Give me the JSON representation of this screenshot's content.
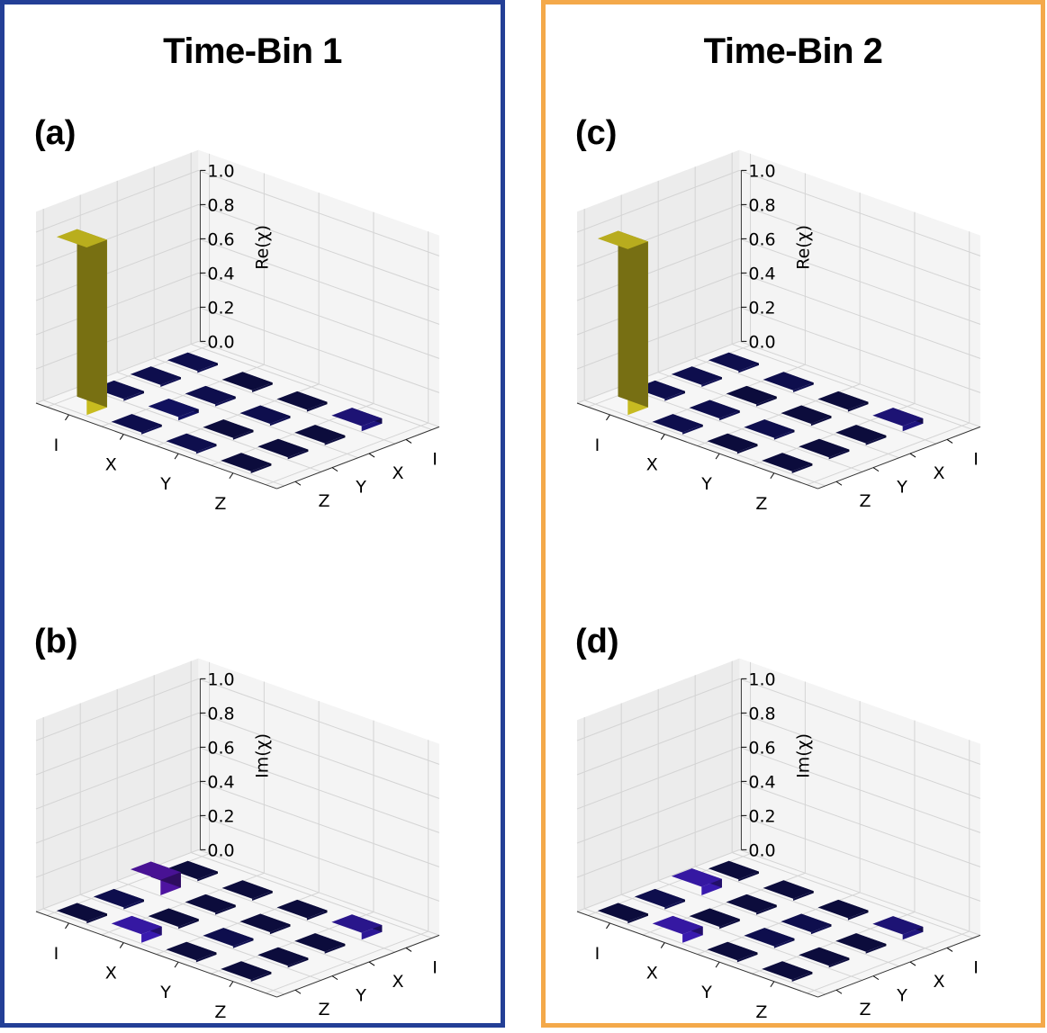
{
  "groups": [
    {
      "title": "Time-Bin 1",
      "color": "#233f96"
    },
    {
      "title": "Time-Bin 2",
      "color": "#f4a94a"
    }
  ],
  "chart_data": [
    {
      "type": "bar3d",
      "panel": "(a)",
      "group": "Time-Bin 1",
      "zlabel": "Re(χ)",
      "zlim": [
        0,
        1.0
      ],
      "zticks": [
        "0.0",
        "0.2",
        "0.4",
        "0.6",
        "0.8",
        "1.0"
      ],
      "rows": [
        "I",
        "X",
        "Y",
        "Z"
      ],
      "cols": [
        "I",
        "X",
        "Y",
        "Z"
      ],
      "values": [
        [
          0.98,
          0.01,
          0.01,
          0.01
        ],
        [
          0.01,
          0.02,
          0.01,
          0.0
        ],
        [
          0.01,
          0.0,
          0.01,
          0.0
        ],
        [
          0.0,
          0.0,
          0.0,
          0.03
        ]
      ]
    },
    {
      "type": "bar3d",
      "panel": "(b)",
      "group": "Time-Bin 1",
      "zlabel": "Im(χ)",
      "zlim": [
        0,
        1.0
      ],
      "zticks": [
        "0.0",
        "0.2",
        "0.4",
        "0.6",
        "0.8",
        "1.0"
      ],
      "rows": [
        "I",
        "X",
        "Y",
        "Z"
      ],
      "cols": [
        "I",
        "X",
        "Y",
        "Z"
      ],
      "values": [
        [
          0.0,
          0.01,
          0.09,
          0.0
        ],
        [
          0.05,
          0.0,
          0.0,
          0.0
        ],
        [
          0.0,
          0.01,
          0.0,
          0.0
        ],
        [
          0.0,
          0.0,
          0.0,
          0.04
        ]
      ]
    },
    {
      "type": "bar3d",
      "panel": "(c)",
      "group": "Time-Bin 2",
      "zlabel": "Re(χ)",
      "zlim": [
        0,
        1.0
      ],
      "zticks": [
        "0.0",
        "0.2",
        "0.4",
        "0.6",
        "0.8",
        "1.0"
      ],
      "rows": [
        "I",
        "X",
        "Y",
        "Z"
      ],
      "cols": [
        "I",
        "X",
        "Y",
        "Z"
      ],
      "values": [
        [
          0.97,
          0.01,
          0.01,
          0.01
        ],
        [
          0.01,
          0.01,
          0.0,
          0.01
        ],
        [
          0.0,
          0.01,
          0.0,
          0.0
        ],
        [
          0.0,
          0.0,
          0.0,
          0.03
        ]
      ]
    },
    {
      "type": "bar3d",
      "panel": "(d)",
      "group": "Time-Bin 2",
      "zlabel": "Im(χ)",
      "zlim": [
        0,
        1.0
      ],
      "zticks": [
        "0.0",
        "0.2",
        "0.4",
        "0.6",
        "0.8",
        "1.0"
      ],
      "rows": [
        "I",
        "X",
        "Y",
        "Z"
      ],
      "cols": [
        "I",
        "X",
        "Y",
        "Z"
      ],
      "values": [
        [
          0.0,
          0.01,
          0.05,
          0.0
        ],
        [
          0.05,
          0.0,
          0.0,
          0.0
        ],
        [
          0.0,
          0.01,
          0.01,
          0.0
        ],
        [
          0.0,
          0.0,
          0.0,
          0.03
        ]
      ]
    }
  ]
}
